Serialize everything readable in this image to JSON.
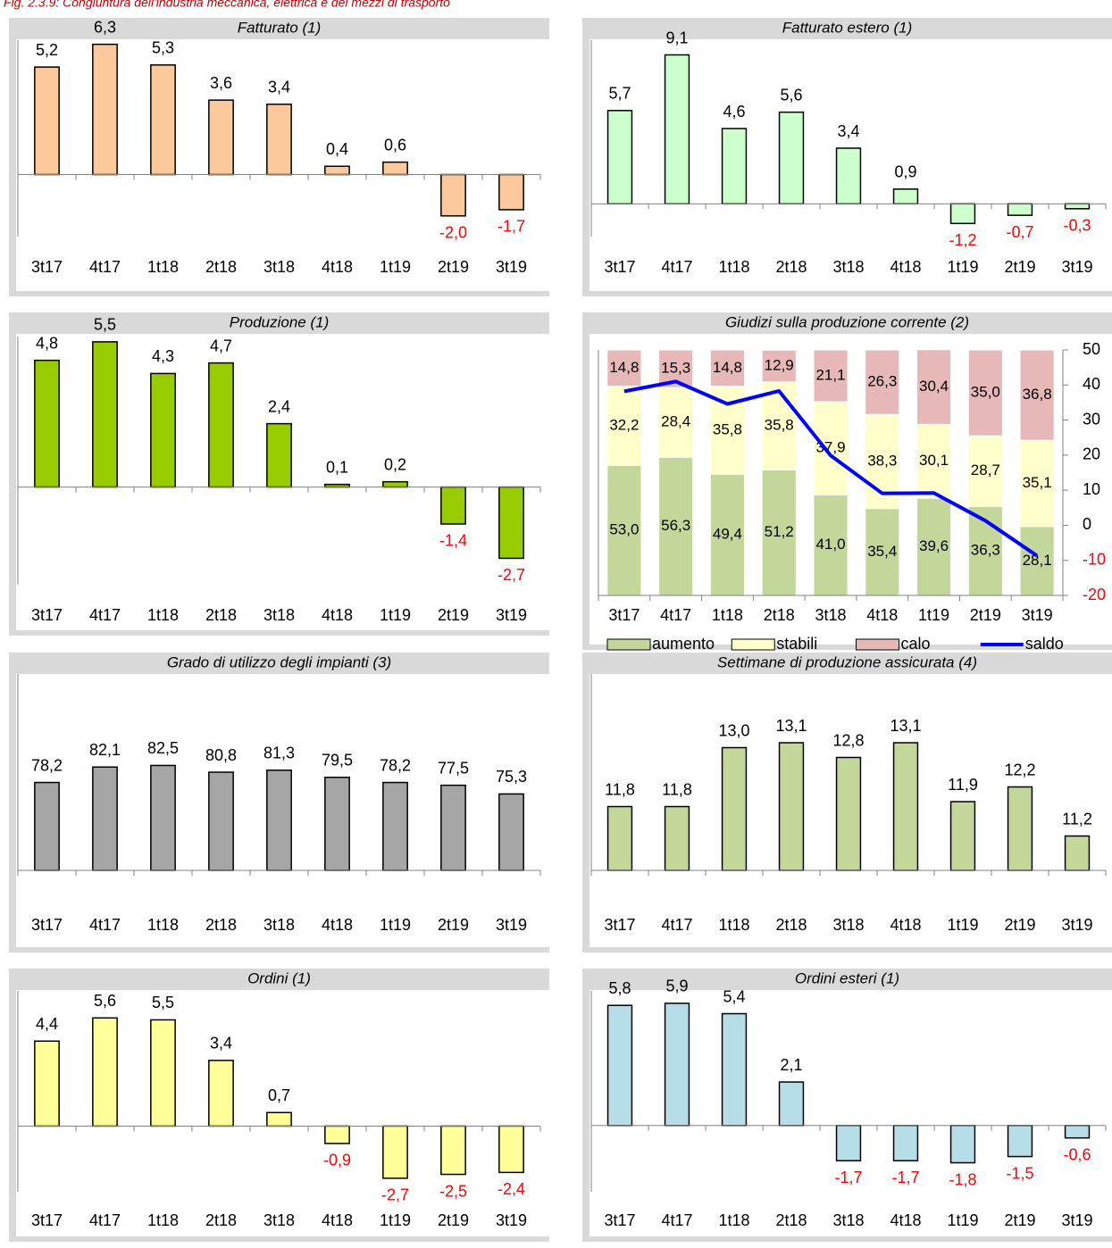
{
  "title": "Fig. 2.3.9: Congiuntura dell'industria meccanica, elettrica e dei mezzi di trasporto",
  "chart_data": [
    {
      "type": "bar",
      "title": "Fatturato (1)",
      "categories": [
        "3t17",
        "4t17",
        "1t18",
        "2t18",
        "3t18",
        "4t18",
        "1t19",
        "2t19",
        "3t19"
      ],
      "values": [
        5.2,
        6.3,
        5.3,
        3.6,
        3.4,
        0.4,
        0.6,
        -2.0,
        -1.7
      ],
      "value_labels": [
        "5,2",
        "6,3",
        "5,3",
        "3,6",
        "3,4",
        "0,4",
        "0,6",
        "-2,0",
        "-1,7"
      ],
      "color": "#fcc99c",
      "negative_label_color": "#ff0000",
      "ylim": [
        -3,
        6.5
      ]
    },
    {
      "type": "bar",
      "title": "Fatturato estero (1)",
      "categories": [
        "3t17",
        "4t17",
        "1t18",
        "2t18",
        "3t18",
        "4t18",
        "1t19",
        "2t19",
        "3t19"
      ],
      "values": [
        5.7,
        9.1,
        4.6,
        5.6,
        3.4,
        0.9,
        -1.2,
        -0.7,
        -0.3
      ],
      "value_labels": [
        "5,7",
        "9,1",
        "4,6",
        "5,6",
        "3,4",
        "0,9",
        "-1,2",
        "-0,7",
        "-0,3"
      ],
      "color": "#ccffcc",
      "negative_label_color": "#ff0000",
      "ylim": [
        -2,
        10
      ]
    },
    {
      "type": "bar",
      "title": "Produzione (1)",
      "categories": [
        "3t17",
        "4t17",
        "1t18",
        "2t18",
        "3t18",
        "4t18",
        "1t19",
        "2t19",
        "3t19"
      ],
      "values": [
        4.8,
        5.5,
        4.3,
        4.7,
        2.4,
        0.1,
        0.2,
        -1.4,
        -2.7
      ],
      "value_labels": [
        "4,8",
        "5,5",
        "4,3",
        "4,7",
        "2,4",
        "0,1",
        "0,2",
        "-1,4",
        "-2,7"
      ],
      "color": "#99cc00",
      "negative_label_color": "#ff0000",
      "ylim": [
        -3.7,
        5.7
      ]
    },
    {
      "type": "stacked_bar",
      "title": "Giudizi sulla produzione corrente (2)",
      "categories": [
        "3t17",
        "4t17",
        "1t18",
        "2t18",
        "3t18",
        "4t18",
        "1t19",
        "2t19",
        "3t19"
      ],
      "series": [
        {
          "name": "aumento",
          "color": "#c4d79b",
          "values": [
            53.0,
            56.3,
            49.4,
            51.2,
            41.0,
            35.4,
            39.6,
            36.3,
            28.1
          ],
          "value_labels": [
            "53,0",
            "56,3",
            "49,4",
            "51,2",
            "41,0",
            "35,4",
            "39,6",
            "36,3",
            "28,1"
          ]
        },
        {
          "name": "stabili",
          "color": "#ffffcc",
          "values": [
            32.2,
            28.4,
            35.8,
            35.8,
            37.9,
            38.3,
            30.1,
            28.7,
            35.1
          ],
          "value_labels": [
            "32,2",
            "28,4",
            "35,8",
            "35,8",
            "37,9",
            "38,3",
            "30,1",
            "28,7",
            "35,1"
          ]
        },
        {
          "name": "calo",
          "color": "#e6b9b8",
          "values": [
            14.8,
            15.3,
            14.8,
            12.9,
            21.1,
            26.3,
            30.4,
            35.0,
            36.8
          ],
          "value_labels": [
            "14,8",
            "15,3",
            "14,8",
            "12,9",
            "21,1",
            "26,3",
            "30,4",
            "35,0",
            "36,8"
          ]
        },
        {
          "name": "saldo",
          "color": "#0000ff",
          "type": "line",
          "axis": "y2",
          "values": [
            38.2,
            41.0,
            34.6,
            38.3,
            19.9,
            9.1,
            9.2,
            1.3,
            -8.7
          ]
        }
      ],
      "ylim": [
        0,
        100
      ],
      "y2lim": [
        -20,
        50
      ],
      "y2ticks": [
        50,
        40,
        30,
        20,
        10,
        0,
        -10,
        -20
      ],
      "negative_label_color": "#ff0000",
      "legend": "bottom"
    },
    {
      "type": "bar",
      "title": "Grado di utilizzo degli impianti (3)",
      "categories": [
        "3t17",
        "4t17",
        "1t18",
        "2t18",
        "3t18",
        "4t18",
        "1t19",
        "2t19",
        "3t19"
      ],
      "values": [
        78.2,
        82.1,
        82.5,
        80.8,
        81.3,
        79.5,
        78.2,
        77.5,
        75.3
      ],
      "value_labels": [
        "78,2",
        "82,1",
        "82,5",
        "80,8",
        "81,3",
        "79,5",
        "78,2",
        "77,5",
        "75,3"
      ],
      "color": "#a6a6a6",
      "negative_label_color": "#ff0000",
      "ylim": [
        56,
        105.6
      ]
    },
    {
      "type": "bar",
      "title": "Settimane di produzione assicurata (4)",
      "categories": [
        "3t17",
        "4t17",
        "1t18",
        "2t18",
        "3t18",
        "4t18",
        "1t19",
        "2t19",
        "3t19"
      ],
      "values": [
        11.8,
        11.8,
        13.0,
        13.1,
        12.8,
        13.1,
        11.9,
        12.2,
        11.2
      ],
      "value_labels": [
        "11,8",
        "11,8",
        "13,0",
        "13,1",
        "12,8",
        "13,1",
        "11,9",
        "12,2",
        "11,2"
      ],
      "color": "#c4d79b",
      "negative_label_color": "#ff0000",
      "ylim": [
        10.5,
        14.5
      ]
    },
    {
      "type": "bar",
      "title": "Ordini (1)",
      "categories": [
        "3t17",
        "4t17",
        "1t18",
        "2t18",
        "3t18",
        "4t18",
        "1t19",
        "2t19",
        "3t19"
      ],
      "values": [
        4.4,
        5.6,
        5.5,
        3.4,
        0.7,
        -0.9,
        -2.7,
        -2.5,
        -2.4
      ],
      "value_labels": [
        "4,4",
        "5,6",
        "5,5",
        "3,4",
        "0,7",
        "-0,9",
        "-2,7",
        "-2,5",
        "-2,4"
      ],
      "color": "#ffff99",
      "negative_label_color": "#ff0000",
      "ylim": [
        -3.4,
        7.0
      ]
    },
    {
      "type": "bar",
      "title": "Ordini esteri (1)",
      "categories": [
        "3t17",
        "4t17",
        "1t18",
        "2t18",
        "3t18",
        "4t18",
        "1t19",
        "2t19",
        "3t19"
      ],
      "values": [
        5.8,
        5.9,
        5.4,
        2.1,
        -1.7,
        -1.7,
        -1.8,
        -1.5,
        -0.6
      ],
      "value_labels": [
        "5,8",
        "5,9",
        "5,4",
        "2,1",
        "-1,7",
        "-1,7",
        "-1,8",
        "-1,5",
        "-0,6"
      ],
      "color": "#b7dde8",
      "negative_label_color": "#ff0000",
      "ylim": [
        -3.2,
        6.5
      ]
    }
  ]
}
